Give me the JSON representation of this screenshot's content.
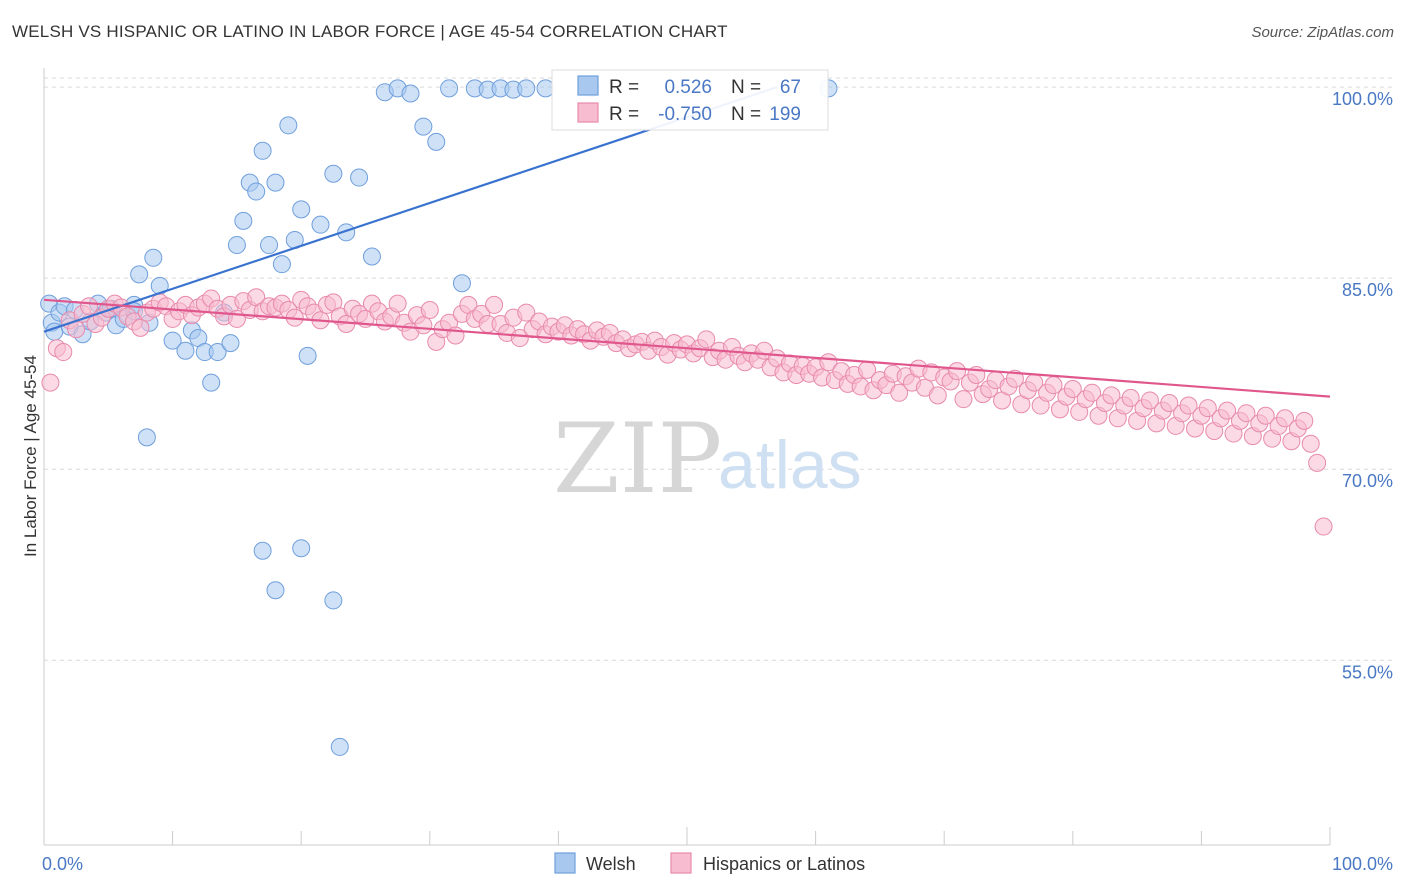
{
  "header": {
    "title": "WELSH VS HISPANIC OR LATINO IN LABOR FORCE | AGE 45-54 CORRELATION CHART",
    "source": "Source: ZipAtlas.com"
  },
  "watermark": {
    "zip": "ZIP",
    "atlas": "atlas"
  },
  "stats": [
    {
      "r_label": "R =",
      "r_value": "0.526",
      "n_label": "N =",
      "n_value": "67",
      "color": "#a8c8f0",
      "stroke": "#6f9fdc"
    },
    {
      "r_label": "R =",
      "r_value": "-0.750",
      "n_label": "N =",
      "n_value": "199",
      "color": "#f8bcd0",
      "stroke": "#e88aac"
    }
  ],
  "legend": [
    {
      "label": "Welsh",
      "color": "#a8c8f0",
      "stroke": "#6f9fdc"
    },
    {
      "label": "Hispanics or Latinos",
      "color": "#f8bcd0",
      "stroke": "#e88aac"
    }
  ],
  "chart_data": {
    "type": "scatter",
    "title": "WELSH VS HISPANIC OR LATINO IN LABOR FORCE | AGE 45-54 CORRELATION CHART",
    "xlabel": "",
    "ylabel": "In Labor Force | Age 45-54",
    "xlim": [
      0,
      100
    ],
    "ylim": [
      40.5,
      101.5
    ],
    "x_tick_labels": [
      "0.0%",
      "100.0%"
    ],
    "y_ticks": [
      55,
      70,
      85,
      100
    ],
    "y_tick_labels": [
      "55.0%",
      "70.0%",
      "85.0%",
      "100.0%"
    ],
    "grid": "horizontal dashed",
    "legend_position": "bottom",
    "series": [
      {
        "name": "Welsh",
        "color": "#6f9fdc",
        "fill": "#a8c8f0",
        "trend": {
          "x": [
            0,
            57
          ],
          "y": [
            80.8,
            100.0
          ]
        },
        "points": [
          [
            0.4,
            83.0
          ],
          [
            0.6,
            81.5
          ],
          [
            0.8,
            80.8
          ],
          [
            1.2,
            82.3
          ],
          [
            1.6,
            82.8
          ],
          [
            2.0,
            81.2
          ],
          [
            2.4,
            82.5
          ],
          [
            3.0,
            80.6
          ],
          [
            3.6,
            81.6
          ],
          [
            4.2,
            83.0
          ],
          [
            4.8,
            82.3
          ],
          [
            5.2,
            82.6
          ],
          [
            5.6,
            81.3
          ],
          [
            6.2,
            81.8
          ],
          [
            7.0,
            82.9
          ],
          [
            7.4,
            85.3
          ],
          [
            8.2,
            81.5
          ],
          [
            7.0,
            82.4
          ],
          [
            8.5,
            86.6
          ],
          [
            9.0,
            84.4
          ],
          [
            10.0,
            80.1
          ],
          [
            11.0,
            79.3
          ],
          [
            11.5,
            80.9
          ],
          [
            12.0,
            80.3
          ],
          [
            12.5,
            79.2
          ],
          [
            13.0,
            76.8
          ],
          [
            13.5,
            79.2
          ],
          [
            14.0,
            82.3
          ],
          [
            14.5,
            79.9
          ],
          [
            15.0,
            87.6
          ],
          [
            15.5,
            89.5
          ],
          [
            16.0,
            92.5
          ],
          [
            16.5,
            91.8
          ],
          [
            17.0,
            95.0
          ],
          [
            17.5,
            87.6
          ],
          [
            18.0,
            92.5
          ],
          [
            18.5,
            86.1
          ],
          [
            19.0,
            97.0
          ],
          [
            19.5,
            88.0
          ],
          [
            20.0,
            90.4
          ],
          [
            20.5,
            78.9
          ],
          [
            21.5,
            89.2
          ],
          [
            22.5,
            93.2
          ],
          [
            23.5,
            88.6
          ],
          [
            24.5,
            92.9
          ],
          [
            25.5,
            86.7
          ],
          [
            26.5,
            99.6
          ],
          [
            27.5,
            99.9
          ],
          [
            28.5,
            99.5
          ],
          [
            29.5,
            96.9
          ],
          [
            30.5,
            95.7
          ],
          [
            31.5,
            99.9
          ],
          [
            32.5,
            84.6
          ],
          [
            33.5,
            99.9
          ],
          [
            34.5,
            99.8
          ],
          [
            35.5,
            99.9
          ],
          [
            36.5,
            99.8
          ],
          [
            37.5,
            99.9
          ],
          [
            8.0,
            72.5
          ],
          [
            17.0,
            63.6
          ],
          [
            18.0,
            60.5
          ],
          [
            20.0,
            63.8
          ],
          [
            22.5,
            59.7
          ],
          [
            23.0,
            48.2
          ],
          [
            39.0,
            99.9
          ],
          [
            42.5,
            99.9
          ],
          [
            61.0,
            99.9
          ]
        ]
      },
      {
        "name": "Hispanics or Latinos",
        "color": "#e88aac",
        "fill": "#f8bcd0",
        "trend": {
          "x": [
            0,
            100
          ],
          "y": [
            83.3,
            75.7
          ]
        },
        "points": [
          [
            0.5,
            76.8
          ],
          [
            1.0,
            79.5
          ],
          [
            1.5,
            79.2
          ],
          [
            2.0,
            81.7
          ],
          [
            2.5,
            81.0
          ],
          [
            3.0,
            82.2
          ],
          [
            3.5,
            82.8
          ],
          [
            4.0,
            81.4
          ],
          [
            4.5,
            81.9
          ],
          [
            5.0,
            82.6
          ],
          [
            5.5,
            83.0
          ],
          [
            6.0,
            82.7
          ],
          [
            6.5,
            82.0
          ],
          [
            7.0,
            81.6
          ],
          [
            7.5,
            81.1
          ],
          [
            8.0,
            82.3
          ],
          [
            8.5,
            82.6
          ],
          [
            9.0,
            83.1
          ],
          [
            9.5,
            82.8
          ],
          [
            10.0,
            81.8
          ],
          [
            10.5,
            82.4
          ],
          [
            11.0,
            82.9
          ],
          [
            11.5,
            82.1
          ],
          [
            12.0,
            82.7
          ],
          [
            12.5,
            83.0
          ],
          [
            13.0,
            83.4
          ],
          [
            13.5,
            82.6
          ],
          [
            14.0,
            82.0
          ],
          [
            14.5,
            82.9
          ],
          [
            15.0,
            81.8
          ],
          [
            15.5,
            83.2
          ],
          [
            16.0,
            82.5
          ],
          [
            16.5,
            83.5
          ],
          [
            17.0,
            82.4
          ],
          [
            17.5,
            82.8
          ],
          [
            18.0,
            82.7
          ],
          [
            18.5,
            83.0
          ],
          [
            19.0,
            82.5
          ],
          [
            19.5,
            81.9
          ],
          [
            20.0,
            83.3
          ],
          [
            20.5,
            82.8
          ],
          [
            21.0,
            82.3
          ],
          [
            21.5,
            81.7
          ],
          [
            22.0,
            82.9
          ],
          [
            22.5,
            83.1
          ],
          [
            23.0,
            82.0
          ],
          [
            23.5,
            81.4
          ],
          [
            24.0,
            82.6
          ],
          [
            24.5,
            82.2
          ],
          [
            25.0,
            81.8
          ],
          [
            25.5,
            83.0
          ],
          [
            26.0,
            82.4
          ],
          [
            26.5,
            81.6
          ],
          [
            27.0,
            82.0
          ],
          [
            27.5,
            83.0
          ],
          [
            28.0,
            81.5
          ],
          [
            28.5,
            80.8
          ],
          [
            29.0,
            82.1
          ],
          [
            29.5,
            81.3
          ],
          [
            30.0,
            82.5
          ],
          [
            30.5,
            80.0
          ],
          [
            31.0,
            81.0
          ],
          [
            31.5,
            81.5
          ],
          [
            32.0,
            80.5
          ],
          [
            32.5,
            82.2
          ],
          [
            33.0,
            82.9
          ],
          [
            33.5,
            81.8
          ],
          [
            34.0,
            82.2
          ],
          [
            34.5,
            81.4
          ],
          [
            35.0,
            82.9
          ],
          [
            35.5,
            81.4
          ],
          [
            36.0,
            80.7
          ],
          [
            36.5,
            81.9
          ],
          [
            37.0,
            80.3
          ],
          [
            37.5,
            82.3
          ],
          [
            38.0,
            81.0
          ],
          [
            38.5,
            81.6
          ],
          [
            39.0,
            80.6
          ],
          [
            39.5,
            81.2
          ],
          [
            40.0,
            80.8
          ],
          [
            40.5,
            81.3
          ],
          [
            41.0,
            80.5
          ],
          [
            41.5,
            81.0
          ],
          [
            42.0,
            80.6
          ],
          [
            42.5,
            80.1
          ],
          [
            43.0,
            80.9
          ],
          [
            43.5,
            80.4
          ],
          [
            44.0,
            80.7
          ],
          [
            44.5,
            79.9
          ],
          [
            45.0,
            80.2
          ],
          [
            45.5,
            79.5
          ],
          [
            46.0,
            79.8
          ],
          [
            46.5,
            80.0
          ],
          [
            47.0,
            79.3
          ],
          [
            47.5,
            80.1
          ],
          [
            48.0,
            79.6
          ],
          [
            48.5,
            79.0
          ],
          [
            49.0,
            79.9
          ],
          [
            49.5,
            79.4
          ],
          [
            50.0,
            79.8
          ],
          [
            50.5,
            79.1
          ],
          [
            51.0,
            79.5
          ],
          [
            51.5,
            80.2
          ],
          [
            52.0,
            78.8
          ],
          [
            52.5,
            79.3
          ],
          [
            53.0,
            78.6
          ],
          [
            53.5,
            79.6
          ],
          [
            54.0,
            78.9
          ],
          [
            54.5,
            78.4
          ],
          [
            55.0,
            79.1
          ],
          [
            55.5,
            78.6
          ],
          [
            56.0,
            79.3
          ],
          [
            56.5,
            78.0
          ],
          [
            57.0,
            78.7
          ],
          [
            57.5,
            77.6
          ],
          [
            58.0,
            78.3
          ],
          [
            58.5,
            77.4
          ],
          [
            59.0,
            78.1
          ],
          [
            59.5,
            77.5
          ],
          [
            60.0,
            78.0
          ],
          [
            60.5,
            77.2
          ],
          [
            61.0,
            78.4
          ],
          [
            61.5,
            77.0
          ],
          [
            62.0,
            77.7
          ],
          [
            62.5,
            76.7
          ],
          [
            63.0,
            77.4
          ],
          [
            63.5,
            76.5
          ],
          [
            64.0,
            77.8
          ],
          [
            64.5,
            76.2
          ],
          [
            65.0,
            77.0
          ],
          [
            65.5,
            76.6
          ],
          [
            66.0,
            77.5
          ],
          [
            66.5,
            76.0
          ],
          [
            67.0,
            77.3
          ],
          [
            67.5,
            76.8
          ],
          [
            68.0,
            77.9
          ],
          [
            68.5,
            76.4
          ],
          [
            69.0,
            77.6
          ],
          [
            69.5,
            75.8
          ],
          [
            70.0,
            77.2
          ],
          [
            70.5,
            76.9
          ],
          [
            71.0,
            77.7
          ],
          [
            71.5,
            75.5
          ],
          [
            72.0,
            76.8
          ],
          [
            72.5,
            77.4
          ],
          [
            73.0,
            75.9
          ],
          [
            73.5,
            76.3
          ],
          [
            74.0,
            77.0
          ],
          [
            74.5,
            75.4
          ],
          [
            75.0,
            76.5
          ],
          [
            75.5,
            77.1
          ],
          [
            76.0,
            75.1
          ],
          [
            76.5,
            76.2
          ],
          [
            77.0,
            76.8
          ],
          [
            77.5,
            75.0
          ],
          [
            78.0,
            76.0
          ],
          [
            78.5,
            76.6
          ],
          [
            79.0,
            74.7
          ],
          [
            79.5,
            75.7
          ],
          [
            80.0,
            76.3
          ],
          [
            80.5,
            74.5
          ],
          [
            81.0,
            75.5
          ],
          [
            81.5,
            76.0
          ],
          [
            82.0,
            74.2
          ],
          [
            82.5,
            75.2
          ],
          [
            83.0,
            75.8
          ],
          [
            83.5,
            74.0
          ],
          [
            84.0,
            75.0
          ],
          [
            84.5,
            75.6
          ],
          [
            85.0,
            73.8
          ],
          [
            85.5,
            74.8
          ],
          [
            86.0,
            75.4
          ],
          [
            86.5,
            73.6
          ],
          [
            87.0,
            74.6
          ],
          [
            87.5,
            75.2
          ],
          [
            88.0,
            73.4
          ],
          [
            88.5,
            74.4
          ],
          [
            89.0,
            75.0
          ],
          [
            89.5,
            73.2
          ],
          [
            90.0,
            74.2
          ],
          [
            90.5,
            74.8
          ],
          [
            91.0,
            73.0
          ],
          [
            91.5,
            74.0
          ],
          [
            92.0,
            74.6
          ],
          [
            92.5,
            72.8
          ],
          [
            93.0,
            73.8
          ],
          [
            93.5,
            74.4
          ],
          [
            94.0,
            72.6
          ],
          [
            94.5,
            73.6
          ],
          [
            95.0,
            74.2
          ],
          [
            95.5,
            72.4
          ],
          [
            96.0,
            73.4
          ],
          [
            96.5,
            74.0
          ],
          [
            97.0,
            72.2
          ],
          [
            97.5,
            73.2
          ],
          [
            98.0,
            73.8
          ],
          [
            98.5,
            72.0
          ],
          [
            99.0,
            70.5
          ],
          [
            99.5,
            65.5
          ]
        ]
      }
    ]
  }
}
